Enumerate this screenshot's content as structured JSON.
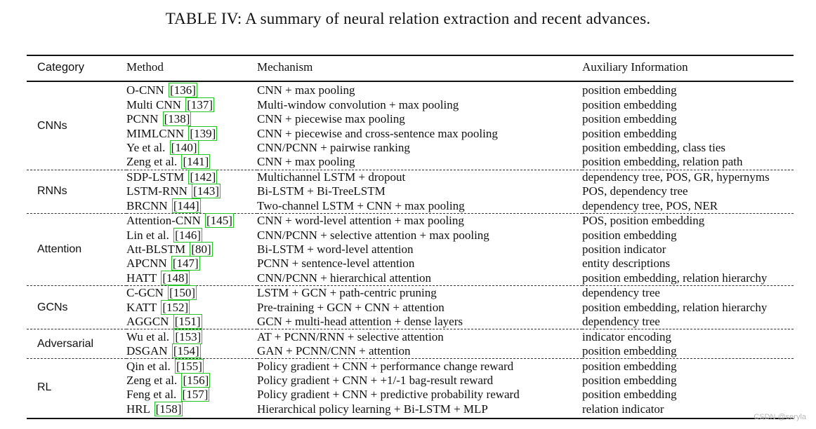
{
  "caption": "TABLE IV: A summary of neural relation extraction and recent advances.",
  "headers": {
    "category": "Category",
    "method": "Method",
    "mechanism": "Mechanism",
    "auxiliary": "Auxiliary Information"
  },
  "groups": [
    {
      "category": "CNNs",
      "rows": [
        {
          "method": "O-CNN",
          "cite": "136",
          "mechanism": "CNN + max pooling",
          "aux": "position embedding"
        },
        {
          "method": "Multi CNN",
          "cite": "137",
          "mechanism": "Multi-window convolution + max pooling",
          "aux": "position embedding"
        },
        {
          "method": "PCNN",
          "cite": "138",
          "mechanism": "CNN + piecewise max pooling",
          "aux": "position embedding"
        },
        {
          "method": "MIMLCNN",
          "cite": "139",
          "mechanism": "CNN + piecewise and cross-sentence max pooling",
          "aux": "position embedding"
        },
        {
          "method": "Ye et al.",
          "cite": "140",
          "mechanism": "CNN/PCNN + pairwise ranking",
          "aux": "position embedding, class ties"
        },
        {
          "method": "Zeng et al.",
          "cite": "141",
          "mechanism": "CNN + max pooling",
          "aux": "position embedding, relation path"
        }
      ]
    },
    {
      "category": "RNNs",
      "rows": [
        {
          "method": "SDP-LSTM",
          "cite": "142",
          "mechanism": "Multichannel LSTM + dropout",
          "aux": "dependency tree, POS, GR, hypernyms"
        },
        {
          "method": "LSTM-RNN",
          "cite": "143",
          "mechanism": "Bi-LSTM + Bi-TreeLSTM",
          "aux": "POS, dependency tree"
        },
        {
          "method": "BRCNN",
          "cite": "144",
          "mechanism": "Two-channel LSTM + CNN + max pooling",
          "aux": "dependency tree, POS, NER"
        }
      ]
    },
    {
      "category": "Attention",
      "rows": [
        {
          "method": "Attention-CNN",
          "cite": "145",
          "mechanism": "CNN + word-level attention + max pooling",
          "aux": "POS, position embedding"
        },
        {
          "method": "Lin et al.",
          "cite": "146",
          "mechanism": "CNN/PCNN + selective attention + max pooling",
          "aux": "position embedding"
        },
        {
          "method": "Att-BLSTM",
          "cite": "80",
          "mechanism": "Bi-LSTM + word-level attention",
          "aux": "position indicator"
        },
        {
          "method": "APCNN",
          "cite": "147",
          "mechanism": "PCNN + sentence-level attention",
          "aux": "entity descriptions"
        },
        {
          "method": "HATT",
          "cite": "148",
          "mechanism": "CNN/PCNN + hierarchical attention",
          "aux": "position embedding, relation hierarchy"
        }
      ]
    },
    {
      "category": "GCNs",
      "rows": [
        {
          "method": "C-GCN",
          "cite": "150",
          "mechanism": "LSTM + GCN + path-centric pruning",
          "aux": "dependency tree"
        },
        {
          "method": "KATT",
          "cite": "152",
          "mechanism": "Pre-training + GCN + CNN + attention",
          "aux": "position embedding, relation hierarchy"
        },
        {
          "method": "AGGCN",
          "cite": "151",
          "mechanism": "GCN + multi-head attention + dense layers",
          "aux": "dependency tree"
        }
      ]
    },
    {
      "category": "Adversarial",
      "rows": [
        {
          "method": "Wu et al.",
          "cite": "153",
          "mechanism": "AT + PCNN/RNN + selective attention",
          "aux": "indicator encoding"
        },
        {
          "method": "DSGAN",
          "cite": "154",
          "mechanism": "GAN + PCNN/CNN + attention",
          "aux": "position embedding"
        }
      ]
    },
    {
      "category": "RL",
      "rows": [
        {
          "method": "Qin et al.",
          "cite": "155",
          "mechanism": "Policy gradient + CNN + performance change reward",
          "aux": "position embedding"
        },
        {
          "method": "Zeng et al.",
          "cite": "156",
          "mechanism": "Policy gradient + CNN + +1/-1 bag-result reward",
          "aux": "position embedding"
        },
        {
          "method": "Feng et al.",
          "cite": "157",
          "mechanism": "Policy gradient + CNN + predictive probability reward",
          "aux": "position embedding"
        },
        {
          "method": "HRL",
          "cite": "158",
          "mechanism": "Hierarchical policy learning + Bi-LSTM + MLP",
          "aux": "relation indicator"
        }
      ]
    }
  ],
  "watermark": "CSDN @seryla",
  "colors": {
    "citation_box": "#22c322",
    "text": "#111111"
  }
}
